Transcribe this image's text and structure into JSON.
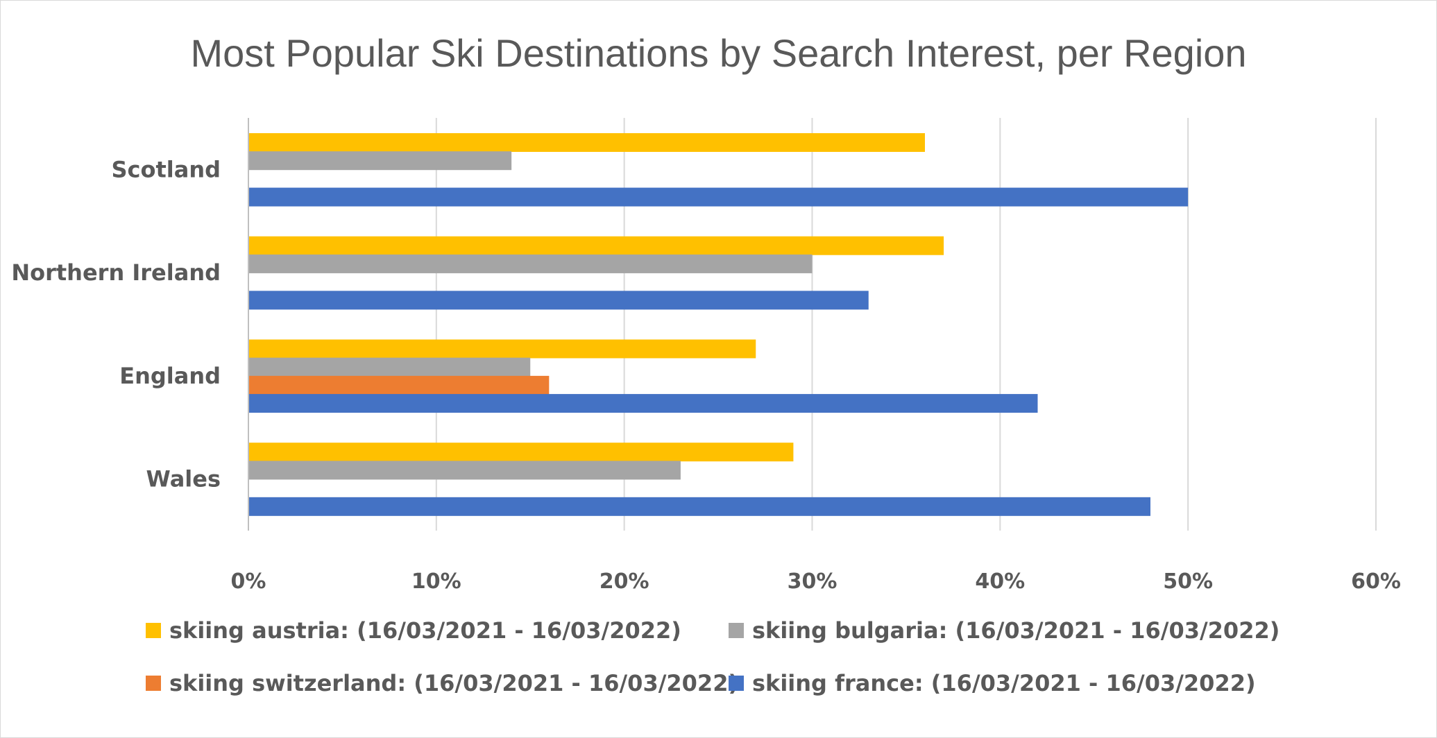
{
  "chart_data": {
    "type": "bar",
    "orientation": "horizontal",
    "title": "Most Popular Ski Destinations by Search Interest, per Region",
    "categories": [
      "Scotland",
      "Northern Ireland",
      "England",
      "Wales"
    ],
    "series": [
      {
        "name": "skiing austria: (16/03/2021 - 16/03/2022)",
        "color": "#FFC000",
        "values": [
          36,
          37,
          27,
          29
        ]
      },
      {
        "name": "skiing bulgaria: (16/03/2021 - 16/03/2022)",
        "color": "#A5A5A5",
        "values": [
          14,
          30,
          15,
          23
        ]
      },
      {
        "name": "skiing switzerland: (16/03/2021 - 16/03/2022)",
        "color": "#ED7D31",
        "values": [
          null,
          null,
          16,
          null
        ]
      },
      {
        "name": "skiing france: (16/03/2021 - 16/03/2022)",
        "color": "#4472C4",
        "values": [
          50,
          33,
          42,
          48
        ]
      }
    ],
    "xlim": [
      0,
      60
    ],
    "xticks": [
      "0%",
      "10%",
      "20%",
      "30%",
      "40%",
      "50%",
      "60%"
    ],
    "grid": true,
    "legend_position": "bottom"
  }
}
